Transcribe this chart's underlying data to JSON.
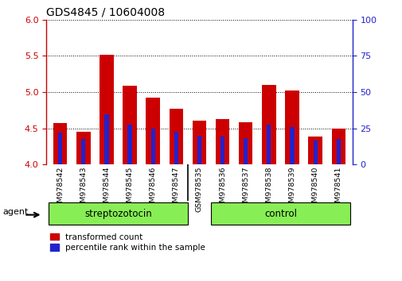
{
  "title": "GDS4845 / 10604008",
  "samples": [
    "GSM978542",
    "GSM978543",
    "GSM978544",
    "GSM978545",
    "GSM978546",
    "GSM978547",
    "GSM978535",
    "GSM978536",
    "GSM978537",
    "GSM978538",
    "GSM978539",
    "GSM978540",
    "GSM978541"
  ],
  "red_values": [
    4.57,
    4.45,
    5.52,
    5.09,
    4.92,
    4.77,
    4.6,
    4.63,
    4.58,
    5.1,
    5.02,
    4.38,
    4.5
  ],
  "blue_values": [
    4.44,
    4.35,
    4.69,
    4.55,
    4.5,
    4.45,
    4.4,
    4.38,
    4.36,
    4.55,
    4.52,
    4.33,
    4.35
  ],
  "ylim_left": [
    4.0,
    6.0
  ],
  "ylim_right": [
    0,
    100
  ],
  "yticks_left": [
    4.0,
    4.5,
    5.0,
    5.5,
    6.0
  ],
  "yticks_right": [
    0,
    25,
    50,
    75,
    100
  ],
  "red_color": "#cc0000",
  "blue_color": "#2222cc",
  "bar_width": 0.6,
  "blue_bar_width": 0.18,
  "strep_samples": 6,
  "ctrl_samples": 7,
  "group_color": "#88ee55",
  "agent_label": "agent",
  "legend_red": "transformed count",
  "legend_blue": "percentile rank within the sample",
  "xtick_bg": "#b8b8b8",
  "plot_bg": "#ffffff"
}
